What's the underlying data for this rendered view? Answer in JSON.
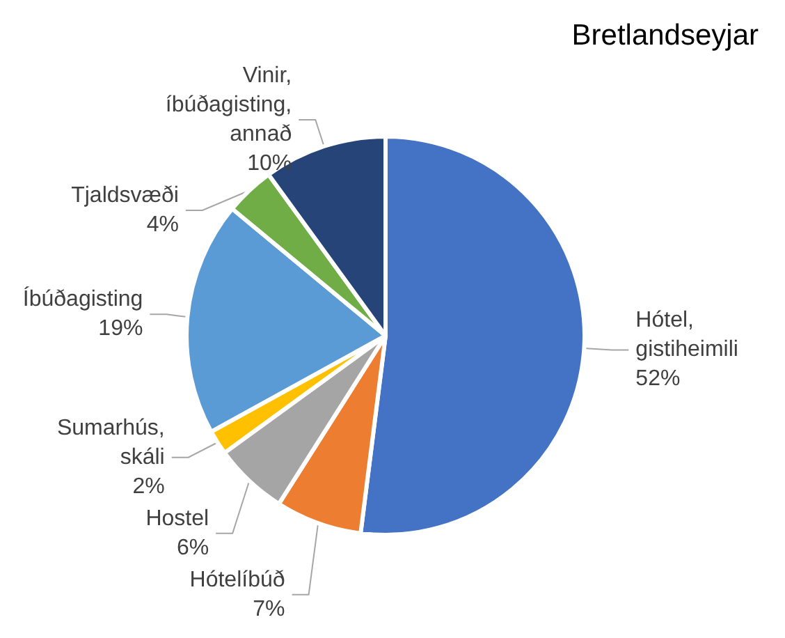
{
  "chart_data": {
    "type": "pie",
    "title": "Bretlandseyjar",
    "categories": [
      "Hótel, gistiheimili",
      "Hótelíbúð",
      "Hostel",
      "Sumarhús, skáli",
      "Íbúðagisting",
      "Tjaldsvæði",
      "Vinir, íbúðagisting, annað"
    ],
    "values": [
      52,
      7,
      6,
      2,
      19,
      4,
      10
    ],
    "value_labels": [
      "52%",
      "7%",
      "6%",
      "2%",
      "19%",
      "4%",
      "10%"
    ],
    "colors": [
      "#4472c4",
      "#ed7d31",
      "#a5a5a5",
      "#ffc000",
      "#5b9bd5",
      "#70ad47",
      "#264478"
    ],
    "legend": false
  }
}
